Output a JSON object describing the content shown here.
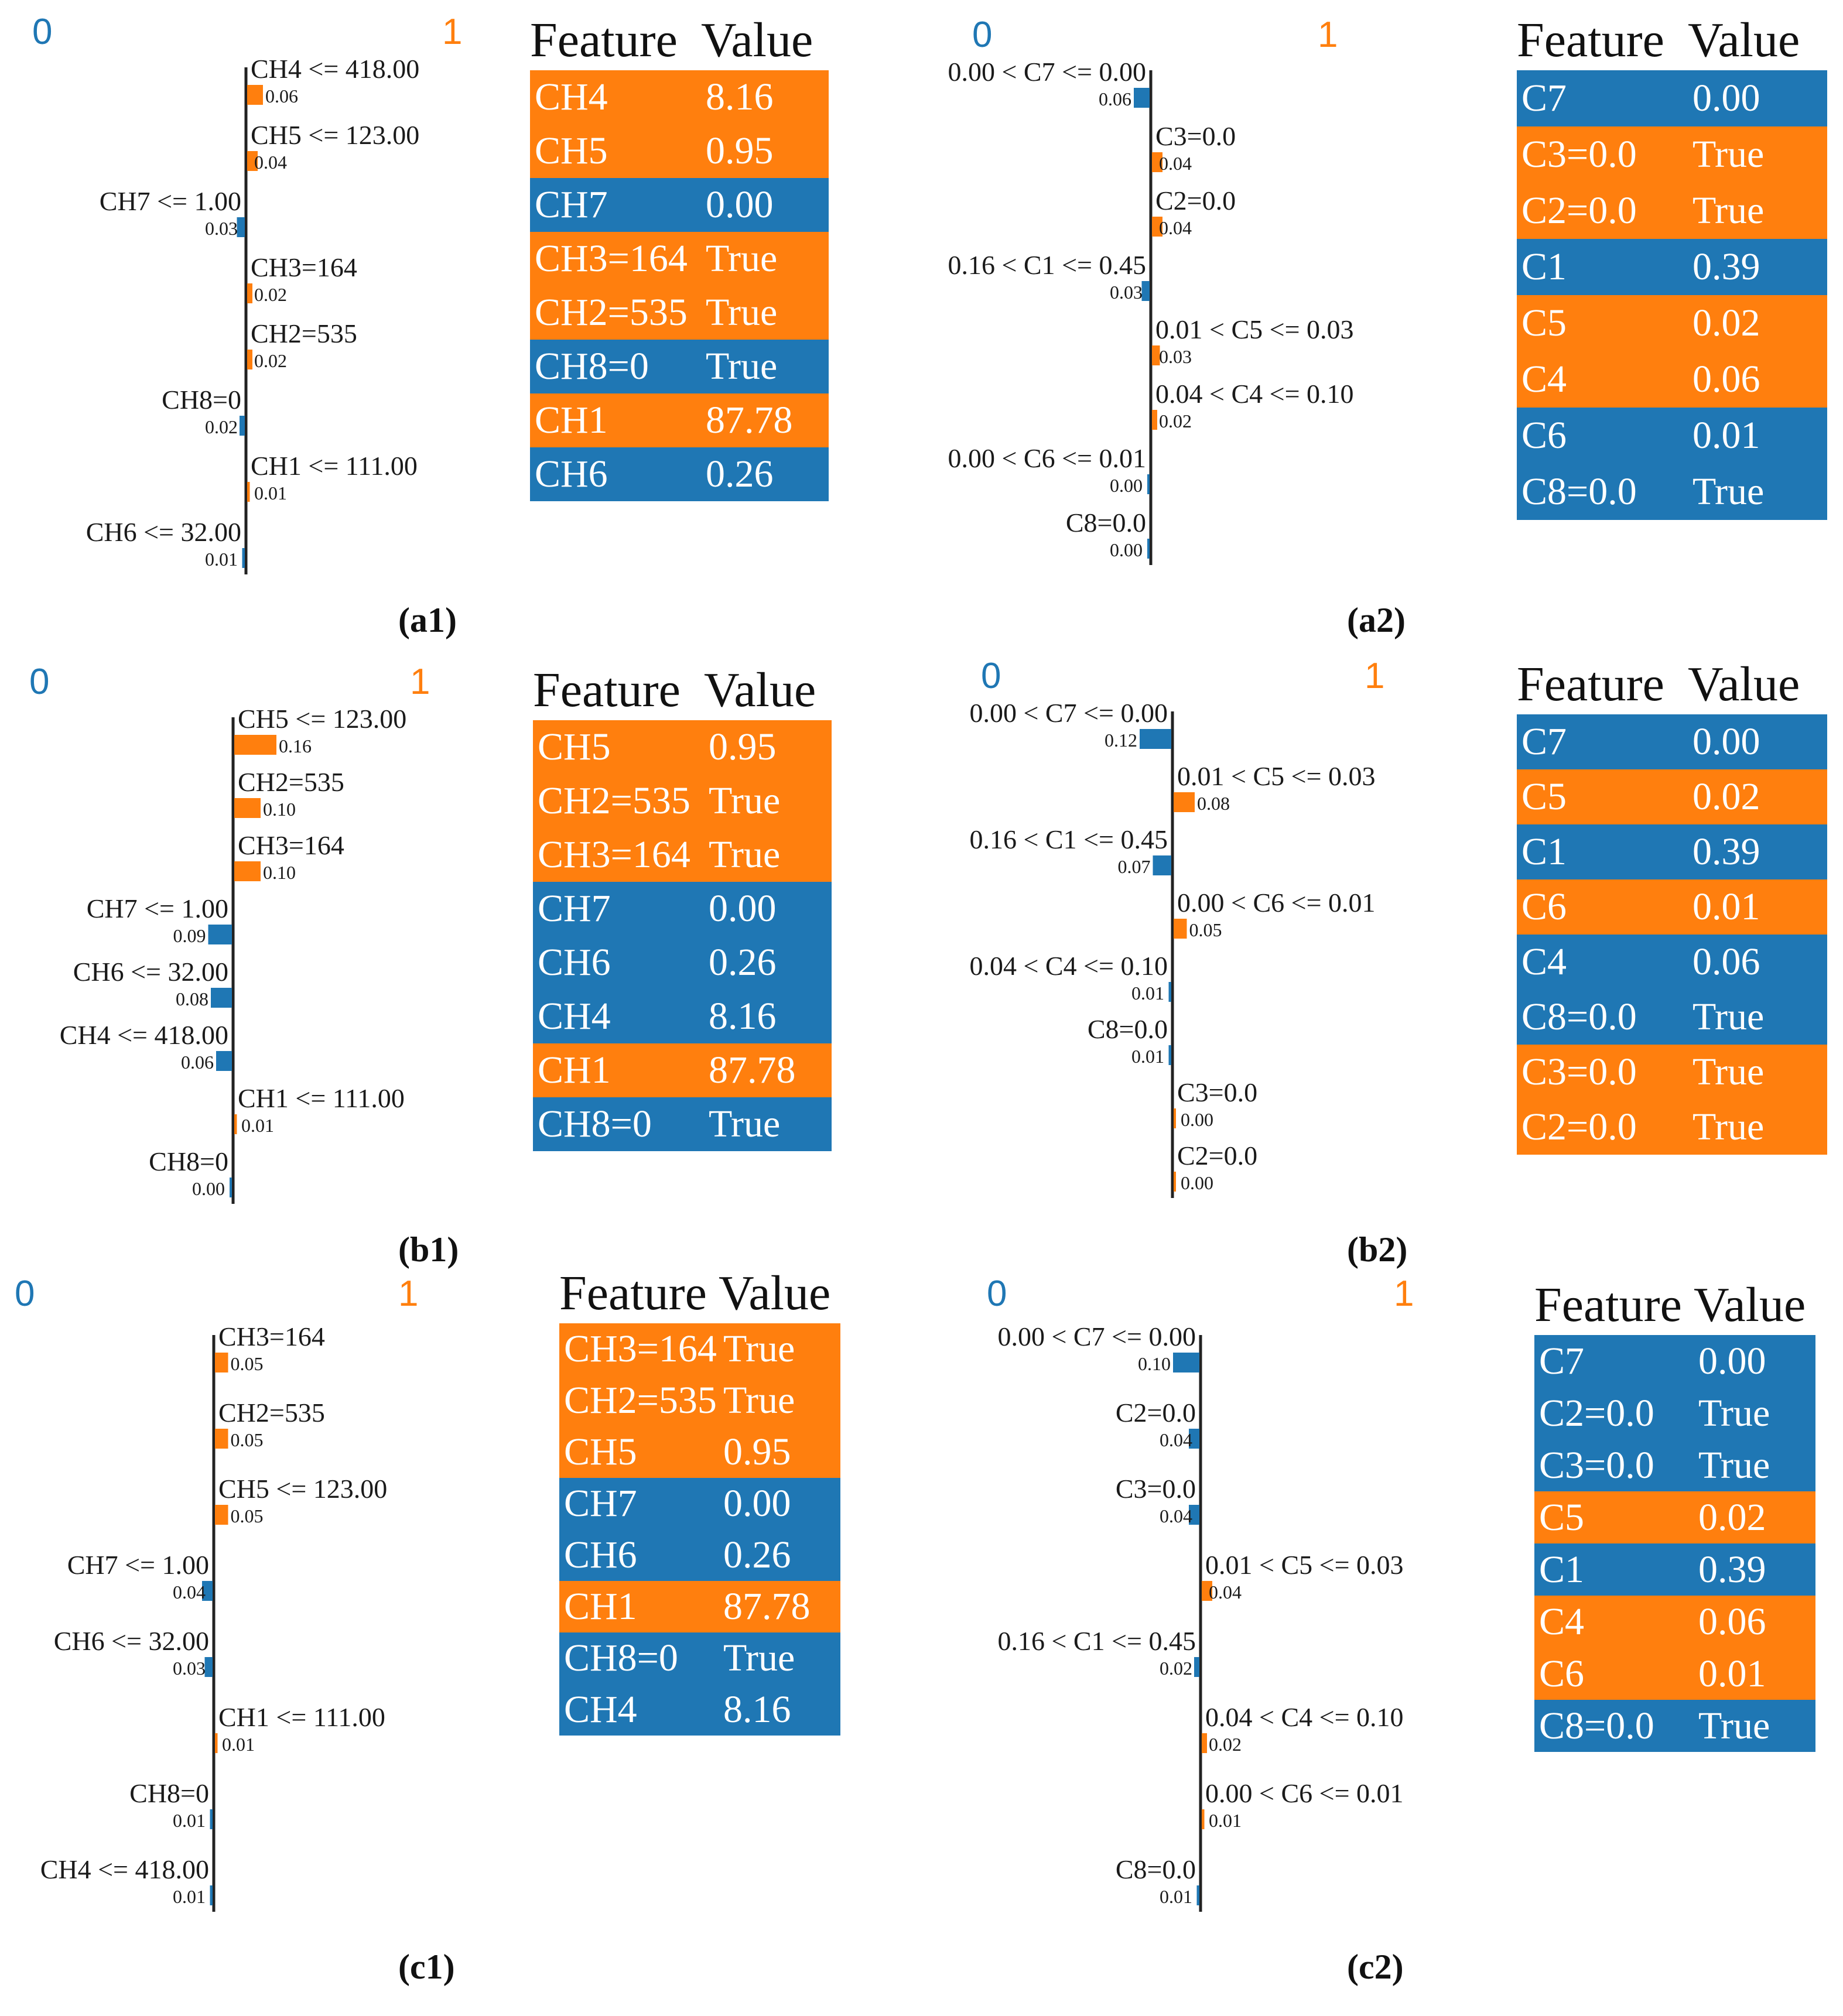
{
  "colors": {
    "class0": "#1f77b4",
    "class1": "#ff7f0e",
    "axis": "#222222",
    "text": "#1a1a1a"
  },
  "panels": [
    {
      "id": "a1",
      "caption": "(a1)",
      "class_labels": [
        "0",
        "1"
      ],
      "bars": [
        {
          "label": "CH4 <= 418.00",
          "value": 0.06,
          "value_label": "0.06",
          "cls": 1
        },
        {
          "label": "CH5 <= 123.00",
          "value": 0.04,
          "value_label": "0.04",
          "cls": 1
        },
        {
          "label": "CH7 <= 1.00",
          "value": 0.03,
          "value_label": "0.03",
          "cls": 0
        },
        {
          "label": "CH3=164",
          "value": 0.02,
          "value_label": "0.02",
          "cls": 1
        },
        {
          "label": "CH2=535",
          "value": 0.02,
          "value_label": "0.02",
          "cls": 1
        },
        {
          "label": "CH8=0",
          "value": 0.02,
          "value_label": "0.02",
          "cls": 0
        },
        {
          "label": "CH1 <= 111.00",
          "value": 0.01,
          "value_label": "0.01",
          "cls": 1
        },
        {
          "label": "CH6 <= 32.00",
          "value": 0.01,
          "value_label": "0.01",
          "cls": 0
        }
      ],
      "table": {
        "header": [
          "Feature",
          "Value"
        ],
        "rows": [
          {
            "feature": "CH4",
            "value": "8.16",
            "cls": 1
          },
          {
            "feature": "CH5",
            "value": "0.95",
            "cls": 1
          },
          {
            "feature": "CH7",
            "value": "0.00",
            "cls": 0
          },
          {
            "feature": "CH3=164",
            "value": "True",
            "cls": 1
          },
          {
            "feature": "CH2=535",
            "value": "True",
            "cls": 1
          },
          {
            "feature": "CH8=0",
            "value": "True",
            "cls": 0
          },
          {
            "feature": "CH1",
            "value": "87.78",
            "cls": 1
          },
          {
            "feature": "CH6",
            "value": "0.26",
            "cls": 0
          }
        ]
      }
    },
    {
      "id": "a2",
      "caption": "(a2)",
      "class_labels": [
        "0",
        "1"
      ],
      "bars": [
        {
          "label": "0.00 < C7 <= 0.00",
          "value": 0.06,
          "value_label": "0.06",
          "cls": 0
        },
        {
          "label": "C3=0.0",
          "value": 0.04,
          "value_label": "0.04",
          "cls": 1
        },
        {
          "label": "C2=0.0",
          "value": 0.04,
          "value_label": "0.04",
          "cls": 1
        },
        {
          "label": "0.16 < C1 <= 0.45",
          "value": 0.03,
          "value_label": "0.03",
          "cls": 0
        },
        {
          "label": "0.01 < C5 <= 0.03",
          "value": 0.03,
          "value_label": "0.03",
          "cls": 1
        },
        {
          "label": "0.04 < C4 <= 0.10",
          "value": 0.02,
          "value_label": "0.02",
          "cls": 1
        },
        {
          "label": "0.00 < C6 <= 0.01",
          "value": 0.0,
          "value_label": "0.00",
          "cls": 0
        },
        {
          "label": "C8=0.0",
          "value": 0.0,
          "value_label": "0.00",
          "cls": 0
        }
      ],
      "table": {
        "header": [
          "Feature",
          "Value"
        ],
        "rows": [
          {
            "feature": "C7",
            "value": "0.00",
            "cls": 0
          },
          {
            "feature": "C3=0.0",
            "value": "True",
            "cls": 1
          },
          {
            "feature": "C2=0.0",
            "value": "True",
            "cls": 1
          },
          {
            "feature": "C1",
            "value": "0.39",
            "cls": 0
          },
          {
            "feature": "C5",
            "value": "0.02",
            "cls": 1
          },
          {
            "feature": "C4",
            "value": "0.06",
            "cls": 1
          },
          {
            "feature": "C6",
            "value": "0.01",
            "cls": 0
          },
          {
            "feature": "C8=0.0",
            "value": "True",
            "cls": 0
          }
        ]
      }
    },
    {
      "id": "b1",
      "caption": "(b1)",
      "class_labels": [
        "0",
        "1"
      ],
      "bars": [
        {
          "label": "CH5 <= 123.00",
          "value": 0.16,
          "value_label": "0.16",
          "cls": 1
        },
        {
          "label": "CH2=535",
          "value": 0.1,
          "value_label": "0.10",
          "cls": 1
        },
        {
          "label": "CH3=164",
          "value": 0.1,
          "value_label": "0.10",
          "cls": 1
        },
        {
          "label": "CH7 <= 1.00",
          "value": 0.09,
          "value_label": "0.09",
          "cls": 0
        },
        {
          "label": "CH6 <= 32.00",
          "value": 0.08,
          "value_label": "0.08",
          "cls": 0
        },
        {
          "label": "CH4 <= 418.00",
          "value": 0.06,
          "value_label": "0.06",
          "cls": 0
        },
        {
          "label": "CH1 <= 111.00",
          "value": 0.01,
          "value_label": "0.01",
          "cls": 1
        },
        {
          "label": "CH8=0",
          "value": 0.0,
          "value_label": "0.00",
          "cls": 0
        }
      ],
      "table": {
        "header": [
          "Feature",
          "Value"
        ],
        "rows": [
          {
            "feature": "CH5",
            "value": "0.95",
            "cls": 1
          },
          {
            "feature": "CH2=535",
            "value": "True",
            "cls": 1
          },
          {
            "feature": "CH3=164",
            "value": "True",
            "cls": 1
          },
          {
            "feature": "CH7",
            "value": "0.00",
            "cls": 0
          },
          {
            "feature": "CH6",
            "value": "0.26",
            "cls": 0
          },
          {
            "feature": "CH4",
            "value": "8.16",
            "cls": 0
          },
          {
            "feature": "CH1",
            "value": "87.78",
            "cls": 1
          },
          {
            "feature": "CH8=0",
            "value": "True",
            "cls": 0
          }
        ]
      }
    },
    {
      "id": "b2",
      "caption": "(b2)",
      "class_labels": [
        "0",
        "1"
      ],
      "bars": [
        {
          "label": "0.00 < C7 <= 0.00",
          "value": 0.12,
          "value_label": "0.12",
          "cls": 0
        },
        {
          "label": "0.01 < C5 <= 0.03",
          "value": 0.08,
          "value_label": "0.08",
          "cls": 1
        },
        {
          "label": "0.16 < C1 <= 0.45",
          "value": 0.07,
          "value_label": "0.07",
          "cls": 0
        },
        {
          "label": "0.00 < C6 <= 0.01",
          "value": 0.05,
          "value_label": "0.05",
          "cls": 1
        },
        {
          "label": "0.04 < C4 <= 0.10",
          "value": 0.01,
          "value_label": "0.01",
          "cls": 0
        },
        {
          "label": "C8=0.0",
          "value": 0.01,
          "value_label": "0.01",
          "cls": 0
        },
        {
          "label": "C3=0.0",
          "value": 0.0,
          "value_label": "0.00",
          "cls": 1
        },
        {
          "label": "C2=0.0",
          "value": 0.0,
          "value_label": "0.00",
          "cls": 1
        }
      ],
      "table": {
        "header": [
          "Feature",
          "Value"
        ],
        "rows": [
          {
            "feature": "C7",
            "value": "0.00",
            "cls": 0
          },
          {
            "feature": "C5",
            "value": "0.02",
            "cls": 1
          },
          {
            "feature": "C1",
            "value": "0.39",
            "cls": 0
          },
          {
            "feature": "C6",
            "value": "0.01",
            "cls": 1
          },
          {
            "feature": "C4",
            "value": "0.06",
            "cls": 0
          },
          {
            "feature": "C8=0.0",
            "value": "True",
            "cls": 0
          },
          {
            "feature": "C3=0.0",
            "value": "True",
            "cls": 1
          },
          {
            "feature": "C2=0.0",
            "value": "True",
            "cls": 1
          }
        ]
      }
    },
    {
      "id": "c1",
      "caption": "(c1)",
      "class_labels": [
        "0",
        "1"
      ],
      "bars": [
        {
          "label": "CH3=164",
          "value": 0.05,
          "value_label": "0.05",
          "cls": 1
        },
        {
          "label": "CH2=535",
          "value": 0.05,
          "value_label": "0.05",
          "cls": 1
        },
        {
          "label": "CH5 <= 123.00",
          "value": 0.05,
          "value_label": "0.05",
          "cls": 1
        },
        {
          "label": "CH7 <= 1.00",
          "value": 0.04,
          "value_label": "0.04",
          "cls": 0
        },
        {
          "label": "CH6 <= 32.00",
          "value": 0.03,
          "value_label": "0.03",
          "cls": 0
        },
        {
          "label": "CH1 <= 111.00",
          "value": 0.01,
          "value_label": "0.01",
          "cls": 1
        },
        {
          "label": "CH8=0",
          "value": 0.01,
          "value_label": "0.01",
          "cls": 0
        },
        {
          "label": "CH4 <= 418.00",
          "value": 0.01,
          "value_label": "0.01",
          "cls": 0
        }
      ],
      "table": {
        "header": [
          "Feature",
          "Value"
        ],
        "rows": [
          {
            "feature": "CH3=164",
            "value": "True",
            "cls": 1
          },
          {
            "feature": "CH2=535",
            "value": "True",
            "cls": 1
          },
          {
            "feature": "CH5",
            "value": "0.95",
            "cls": 1
          },
          {
            "feature": "CH7",
            "value": "0.00",
            "cls": 0
          },
          {
            "feature": "CH6",
            "value": "0.26",
            "cls": 0
          },
          {
            "feature": "CH1",
            "value": "87.78",
            "cls": 1
          },
          {
            "feature": "CH8=0",
            "value": "True",
            "cls": 0
          },
          {
            "feature": "CH4",
            "value": "8.16",
            "cls": 0
          }
        ]
      }
    },
    {
      "id": "c2",
      "caption": "(c2)",
      "class_labels": [
        "0",
        "1"
      ],
      "bars": [
        {
          "label": "0.00 < C7 <= 0.00",
          "value": 0.1,
          "value_label": "0.10",
          "cls": 0
        },
        {
          "label": "C2=0.0",
          "value": 0.04,
          "value_label": "0.04",
          "cls": 0
        },
        {
          "label": "C3=0.0",
          "value": 0.04,
          "value_label": "0.04",
          "cls": 0
        },
        {
          "label": "0.01 < C5 <= 0.03",
          "value": 0.04,
          "value_label": "0.04",
          "cls": 1
        },
        {
          "label": "0.16 < C1 <= 0.45",
          "value": 0.02,
          "value_label": "0.02",
          "cls": 0
        },
        {
          "label": "0.04 < C4 <= 0.10",
          "value": 0.02,
          "value_label": "0.02",
          "cls": 1
        },
        {
          "label": "0.00 < C6 <= 0.01",
          "value": 0.01,
          "value_label": "0.01",
          "cls": 1
        },
        {
          "label": "C8=0.0",
          "value": 0.01,
          "value_label": "0.01",
          "cls": 0
        }
      ],
      "table": {
        "header": [
          "Feature",
          "Value"
        ],
        "rows": [
          {
            "feature": "C7",
            "value": "0.00",
            "cls": 0
          },
          {
            "feature": "C2=0.0",
            "value": "True",
            "cls": 0
          },
          {
            "feature": "C3=0.0",
            "value": "True",
            "cls": 0
          },
          {
            "feature": "C5",
            "value": "0.02",
            "cls": 1
          },
          {
            "feature": "C1",
            "value": "0.39",
            "cls": 0
          },
          {
            "feature": "C4",
            "value": "0.06",
            "cls": 1
          },
          {
            "feature": "C6",
            "value": "0.01",
            "cls": 1
          },
          {
            "feature": "C8=0.0",
            "value": "True",
            "cls": 0
          }
        ]
      }
    }
  ],
  "chart_data": [
    {
      "type": "bar",
      "panel": "a1",
      "orientation": "horizontal-diverging",
      "categories": [
        "CH4 <= 418.00",
        "CH5 <= 123.00",
        "CH7 <= 1.00",
        "CH3=164",
        "CH2=535",
        "CH8=0",
        "CH1 <= 111.00",
        "CH6 <= 32.00"
      ],
      "values": [
        0.06,
        0.04,
        -0.03,
        0.02,
        0.02,
        -0.02,
        0.01,
        -0.01
      ],
      "legend": [
        "0",
        "1"
      ]
    },
    {
      "type": "bar",
      "panel": "a2",
      "orientation": "horizontal-diverging",
      "categories": [
        "0.00 < C7 <= 0.00",
        "C3=0.0",
        "C2=0.0",
        "0.16 < C1 <= 0.45",
        "0.01 < C5 <= 0.03",
        "0.04 < C4 <= 0.10",
        "0.00 < C6 <= 0.01",
        "C8=0.0"
      ],
      "values": [
        -0.06,
        0.04,
        0.04,
        -0.03,
        0.03,
        0.02,
        0.0,
        0.0
      ],
      "legend": [
        "0",
        "1"
      ]
    },
    {
      "type": "bar",
      "panel": "b1",
      "orientation": "horizontal-diverging",
      "categories": [
        "CH5 <= 123.00",
        "CH2=535",
        "CH3=164",
        "CH7 <= 1.00",
        "CH6 <= 32.00",
        "CH4 <= 418.00",
        "CH1 <= 111.00",
        "CH8=0"
      ],
      "values": [
        0.16,
        0.1,
        0.1,
        -0.09,
        -0.08,
        -0.06,
        0.01,
        0.0
      ],
      "legend": [
        "0",
        "1"
      ]
    },
    {
      "type": "bar",
      "panel": "b2",
      "orientation": "horizontal-diverging",
      "categories": [
        "0.00 < C7 <= 0.00",
        "0.01 < C5 <= 0.03",
        "0.16 < C1 <= 0.45",
        "0.00 < C6 <= 0.01",
        "0.04 < C4 <= 0.10",
        "C8=0.0",
        "C3=0.0",
        "C2=0.0"
      ],
      "values": [
        -0.12,
        0.08,
        -0.07,
        0.05,
        -0.01,
        -0.01,
        0.0,
        0.0
      ],
      "legend": [
        "0",
        "1"
      ]
    },
    {
      "type": "bar",
      "panel": "c1",
      "orientation": "horizontal-diverging",
      "categories": [
        "CH3=164",
        "CH2=535",
        "CH5 <= 123.00",
        "CH7 <= 1.00",
        "CH6 <= 32.00",
        "CH1 <= 111.00",
        "CH8=0",
        "CH4 <= 418.00"
      ],
      "values": [
        0.05,
        0.05,
        0.05,
        -0.04,
        -0.03,
        0.01,
        -0.01,
        -0.01
      ],
      "legend": [
        "0",
        "1"
      ]
    },
    {
      "type": "bar",
      "panel": "c2",
      "orientation": "horizontal-diverging",
      "categories": [
        "0.00 < C7 <= 0.00",
        "C2=0.0",
        "C3=0.0",
        "0.01 < C5 <= 0.03",
        "0.16 < C1 <= 0.45",
        "0.04 < C4 <= 0.10",
        "0.00 < C6 <= 0.01",
        "C8=0.0"
      ],
      "values": [
        -0.1,
        -0.04,
        -0.04,
        0.04,
        -0.02,
        0.02,
        0.01,
        -0.01
      ],
      "legend": [
        "0",
        "1"
      ]
    }
  ]
}
